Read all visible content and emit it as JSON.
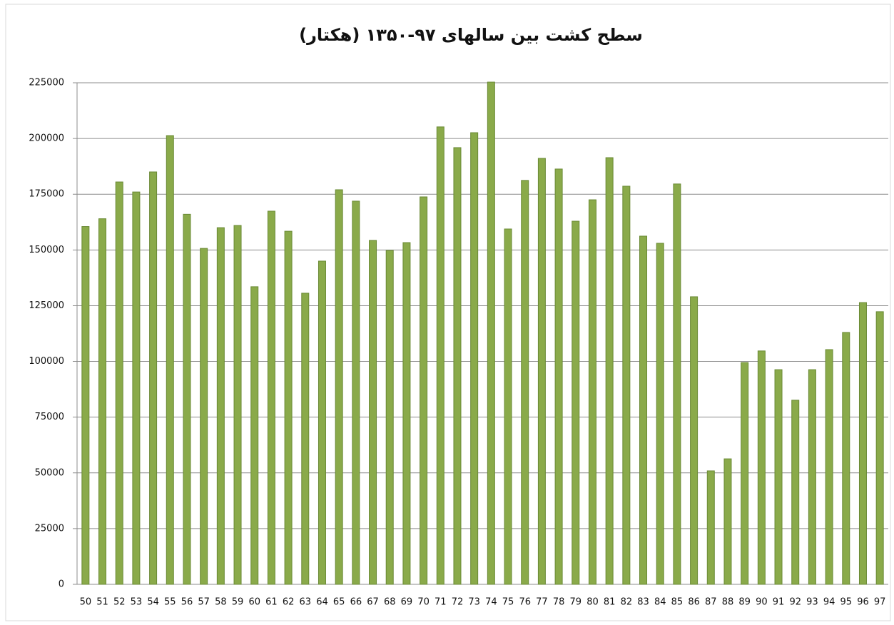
{
  "chart_data": {
    "type": "bar",
    "title": "سطح کشت بین سالهای ۹۷-۱۳۵۰ (هکتار)",
    "categories": [
      "50",
      "51",
      "52",
      "53",
      "54",
      "55",
      "56",
      "57",
      "58",
      "59",
      "60",
      "61",
      "62",
      "63",
      "64",
      "65",
      "66",
      "67",
      "68",
      "69",
      "70",
      "71",
      "72",
      "73",
      "74",
      "75",
      "76",
      "77",
      "78",
      "79",
      "80",
      "81",
      "82",
      "83",
      "84",
      "85",
      "86",
      "87",
      "88",
      "89",
      "90",
      "91",
      "92",
      "93",
      "94",
      "95",
      "96",
      "97"
    ],
    "values": [
      160500,
      164000,
      180500,
      176000,
      185000,
      201300,
      166000,
      150700,
      160000,
      161000,
      133500,
      167400,
      158400,
      130600,
      145000,
      177000,
      171900,
      154300,
      149800,
      153300,
      173800,
      205200,
      195900,
      202600,
      225300,
      159400,
      181200,
      191100,
      186300,
      162900,
      172500,
      191400,
      178600,
      156200,
      153000,
      179600,
      129000,
      50900,
      56300,
      99500,
      104700,
      96300,
      82600,
      96300,
      105300,
      113000,
      126400,
      122300
    ],
    "color": "#8aaa4a",
    "ylim": [
      0,
      225000
    ],
    "yticks": [
      0,
      25000,
      50000,
      75000,
      100000,
      125000,
      150000,
      175000,
      200000,
      225000
    ],
    "grid": true
  }
}
